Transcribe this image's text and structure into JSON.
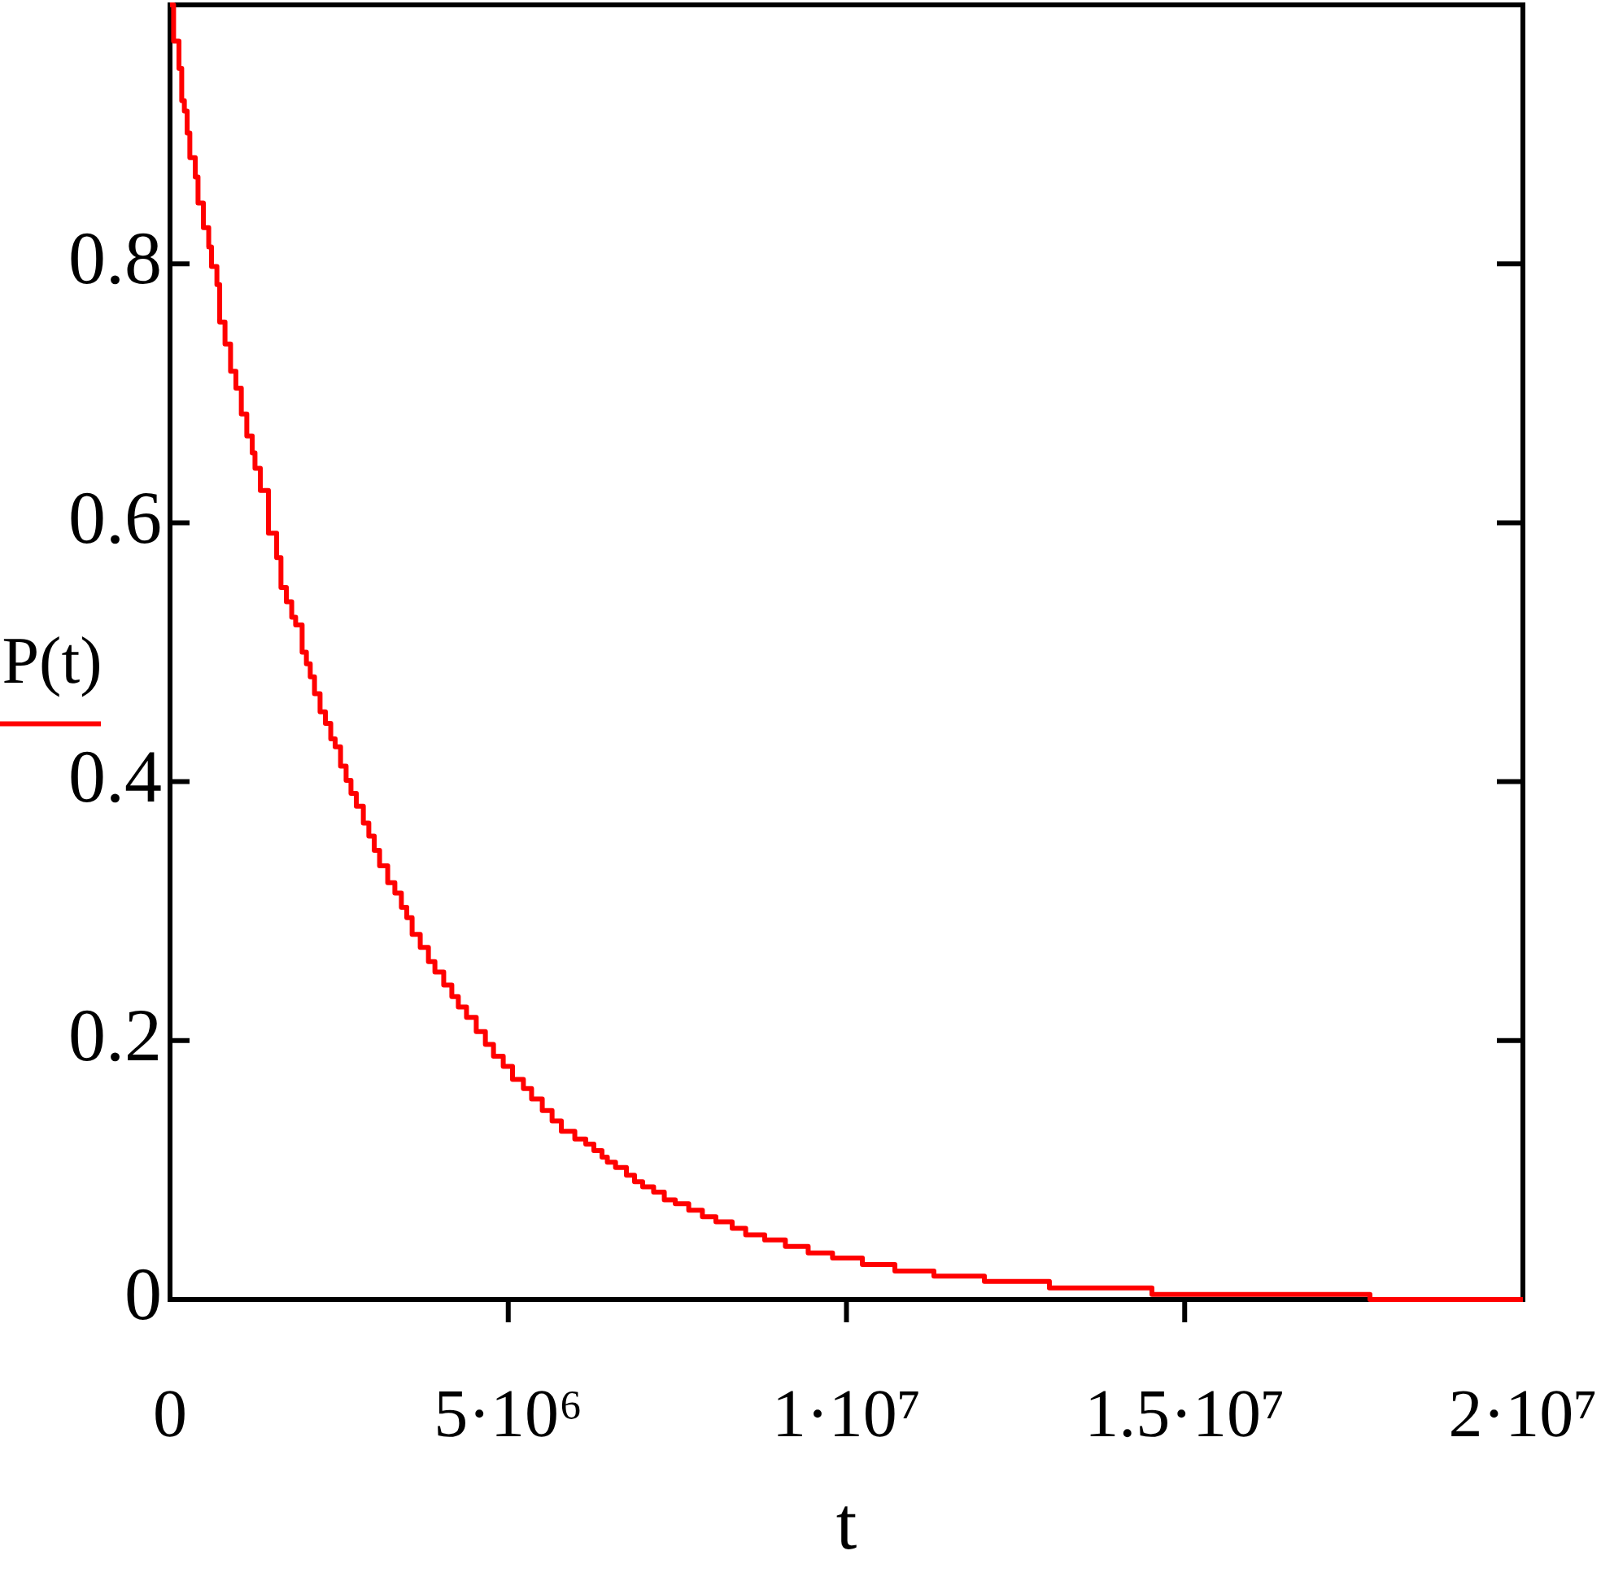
{
  "chart_data": {
    "type": "step",
    "xlabel": "t",
    "x": [
      0,
      53000,
      132000,
      173000,
      212000,
      253000,
      293000,
      373000,
      414000,
      493000,
      572000,
      613000,
      693000,
      734000,
      813000,
      895000,
      974000,
      1054000,
      1135000,
      1215000,
      1256000,
      1335000,
      1455000,
      1576000,
      1640000,
      1720000,
      1799000,
      1857000,
      1953000,
      2016000,
      2073000,
      2136000,
      2218000,
      2297000,
      2376000,
      2441000,
      2521000,
      2603000,
      2675000,
      2754000,
      2858000,
      2939000,
      3019000,
      3098000,
      3218000,
      3324000,
      3420000,
      3500000,
      3579000,
      3699000,
      3820000,
      3916000,
      4046000,
      4166000,
      4262000,
      4383000,
      4527000,
      4662000,
      4782000,
      4926000,
      5063000,
      5224000,
      5345000,
      5503000,
      5648000,
      5785000,
      5984000,
      6146000,
      6266000,
      6386000,
      6465000,
      6586000,
      6747000,
      6867000,
      6987000,
      7149000,
      7307000,
      7469000,
      7668000,
      7870000,
      8070000,
      8310000,
      8510000,
      8791000,
      9097000,
      9434000,
      9794000,
      10235000,
      10716000,
      11293000,
      12039000,
      13000000,
      14516000,
      17739000,
      20000000
    ],
    "series": [
      {
        "name": "P(t)",
        "color": "#ff0000",
        "values": [
          1,
          0.972,
          0.951,
          0.926,
          0.918,
          0.901,
          0.882,
          0.867,
          0.847,
          0.828,
          0.813,
          0.798,
          0.784,
          0.755,
          0.738,
          0.717,
          0.704,
          0.684,
          0.667,
          0.654,
          0.642,
          0.625,
          0.592,
          0.573,
          0.55,
          0.539,
          0.527,
          0.521,
          0.5,
          0.491,
          0.481,
          0.468,
          0.454,
          0.445,
          0.433,
          0.427,
          0.412,
          0.401,
          0.391,
          0.381,
          0.368,
          0.358,
          0.347,
          0.335,
          0.322,
          0.314,
          0.303,
          0.295,
          0.282,
          0.272,
          0.261,
          0.253,
          0.243,
          0.234,
          0.226,
          0.218,
          0.207,
          0.197,
          0.188,
          0.18,
          0.17,
          0.163,
          0.155,
          0.146,
          0.138,
          0.13,
          0.124,
          0.12,
          0.115,
          0.11,
          0.106,
          0.102,
          0.096,
          0.091,
          0.087,
          0.083,
          0.077,
          0.074,
          0.069,
          0.064,
          0.06,
          0.055,
          0.05,
          0.046,
          0.041,
          0.036,
          0.032,
          0.027,
          0.022,
          0.018,
          0.014,
          0.009,
          0.004,
          0,
          0
        ]
      }
    ],
    "xlim": [
      0,
      20000000
    ],
    "ylim": [
      0,
      1
    ],
    "xticks": [
      0,
      {
        "value": 5000000,
        "label": "5·10⁶"
      },
      {
        "value": 10000000,
        "label": "1·10⁷"
      },
      {
        "value": 15000000,
        "label": "1.5·10⁷"
      },
      {
        "value": 20000000,
        "label": "2·10⁷"
      }
    ],
    "yticks": [
      0,
      0.2,
      0.4,
      0.6,
      0.8
    ],
    "grid": false,
    "legend": "left"
  }
}
